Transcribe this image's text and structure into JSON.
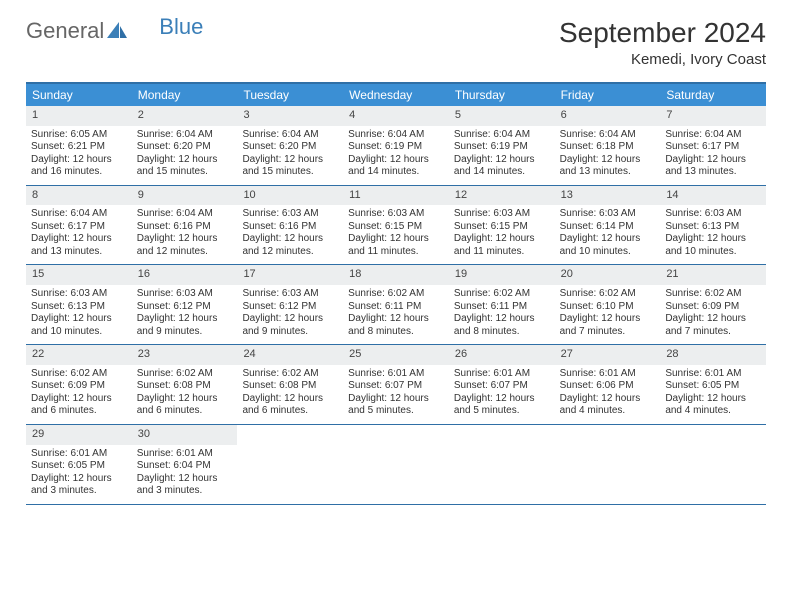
{
  "brand": {
    "part1": "General",
    "part2": "Blue"
  },
  "title": "September 2024",
  "location": "Kemedi, Ivory Coast",
  "colors": {
    "headerBar": "#3b8fd4",
    "ruleLine": "#2f6fa6",
    "dayNumBg": "#eceeef",
    "brandBlue": "#3b7fb8",
    "brandGray": "#666666",
    "text": "#333333",
    "white": "#ffffff"
  },
  "dayNames": [
    "Sunday",
    "Monday",
    "Tuesday",
    "Wednesday",
    "Thursday",
    "Friday",
    "Saturday"
  ],
  "days": [
    {
      "n": "1",
      "sunrise": "6:05 AM",
      "sunset": "6:21 PM",
      "daylight": "12 hours and 16 minutes."
    },
    {
      "n": "2",
      "sunrise": "6:04 AM",
      "sunset": "6:20 PM",
      "daylight": "12 hours and 15 minutes."
    },
    {
      "n": "3",
      "sunrise": "6:04 AM",
      "sunset": "6:20 PM",
      "daylight": "12 hours and 15 minutes."
    },
    {
      "n": "4",
      "sunrise": "6:04 AM",
      "sunset": "6:19 PM",
      "daylight": "12 hours and 14 minutes."
    },
    {
      "n": "5",
      "sunrise": "6:04 AM",
      "sunset": "6:19 PM",
      "daylight": "12 hours and 14 minutes."
    },
    {
      "n": "6",
      "sunrise": "6:04 AM",
      "sunset": "6:18 PM",
      "daylight": "12 hours and 13 minutes."
    },
    {
      "n": "7",
      "sunrise": "6:04 AM",
      "sunset": "6:17 PM",
      "daylight": "12 hours and 13 minutes."
    },
    {
      "n": "8",
      "sunrise": "6:04 AM",
      "sunset": "6:17 PM",
      "daylight": "12 hours and 13 minutes."
    },
    {
      "n": "9",
      "sunrise": "6:04 AM",
      "sunset": "6:16 PM",
      "daylight": "12 hours and 12 minutes."
    },
    {
      "n": "10",
      "sunrise": "6:03 AM",
      "sunset": "6:16 PM",
      "daylight": "12 hours and 12 minutes."
    },
    {
      "n": "11",
      "sunrise": "6:03 AM",
      "sunset": "6:15 PM",
      "daylight": "12 hours and 11 minutes."
    },
    {
      "n": "12",
      "sunrise": "6:03 AM",
      "sunset": "6:15 PM",
      "daylight": "12 hours and 11 minutes."
    },
    {
      "n": "13",
      "sunrise": "6:03 AM",
      "sunset": "6:14 PM",
      "daylight": "12 hours and 10 minutes."
    },
    {
      "n": "14",
      "sunrise": "6:03 AM",
      "sunset": "6:13 PM",
      "daylight": "12 hours and 10 minutes."
    },
    {
      "n": "15",
      "sunrise": "6:03 AM",
      "sunset": "6:13 PM",
      "daylight": "12 hours and 10 minutes."
    },
    {
      "n": "16",
      "sunrise": "6:03 AM",
      "sunset": "6:12 PM",
      "daylight": "12 hours and 9 minutes."
    },
    {
      "n": "17",
      "sunrise": "6:03 AM",
      "sunset": "6:12 PM",
      "daylight": "12 hours and 9 minutes."
    },
    {
      "n": "18",
      "sunrise": "6:02 AM",
      "sunset": "6:11 PM",
      "daylight": "12 hours and 8 minutes."
    },
    {
      "n": "19",
      "sunrise": "6:02 AM",
      "sunset": "6:11 PM",
      "daylight": "12 hours and 8 minutes."
    },
    {
      "n": "20",
      "sunrise": "6:02 AM",
      "sunset": "6:10 PM",
      "daylight": "12 hours and 7 minutes."
    },
    {
      "n": "21",
      "sunrise": "6:02 AM",
      "sunset": "6:09 PM",
      "daylight": "12 hours and 7 minutes."
    },
    {
      "n": "22",
      "sunrise": "6:02 AM",
      "sunset": "6:09 PM",
      "daylight": "12 hours and 6 minutes."
    },
    {
      "n": "23",
      "sunrise": "6:02 AM",
      "sunset": "6:08 PM",
      "daylight": "12 hours and 6 minutes."
    },
    {
      "n": "24",
      "sunrise": "6:02 AM",
      "sunset": "6:08 PM",
      "daylight": "12 hours and 6 minutes."
    },
    {
      "n": "25",
      "sunrise": "6:01 AM",
      "sunset": "6:07 PM",
      "daylight": "12 hours and 5 minutes."
    },
    {
      "n": "26",
      "sunrise": "6:01 AM",
      "sunset": "6:07 PM",
      "daylight": "12 hours and 5 minutes."
    },
    {
      "n": "27",
      "sunrise": "6:01 AM",
      "sunset": "6:06 PM",
      "daylight": "12 hours and 4 minutes."
    },
    {
      "n": "28",
      "sunrise": "6:01 AM",
      "sunset": "6:05 PM",
      "daylight": "12 hours and 4 minutes."
    },
    {
      "n": "29",
      "sunrise": "6:01 AM",
      "sunset": "6:05 PM",
      "daylight": "12 hours and 3 minutes."
    },
    {
      "n": "30",
      "sunrise": "6:01 AM",
      "sunset": "6:04 PM",
      "daylight": "12 hours and 3 minutes."
    }
  ],
  "labels": {
    "sunrise": "Sunrise:",
    "sunset": "Sunset:",
    "daylight": "Daylight:"
  },
  "layout": {
    "startDayIndex": 0,
    "totalCells": 35
  }
}
